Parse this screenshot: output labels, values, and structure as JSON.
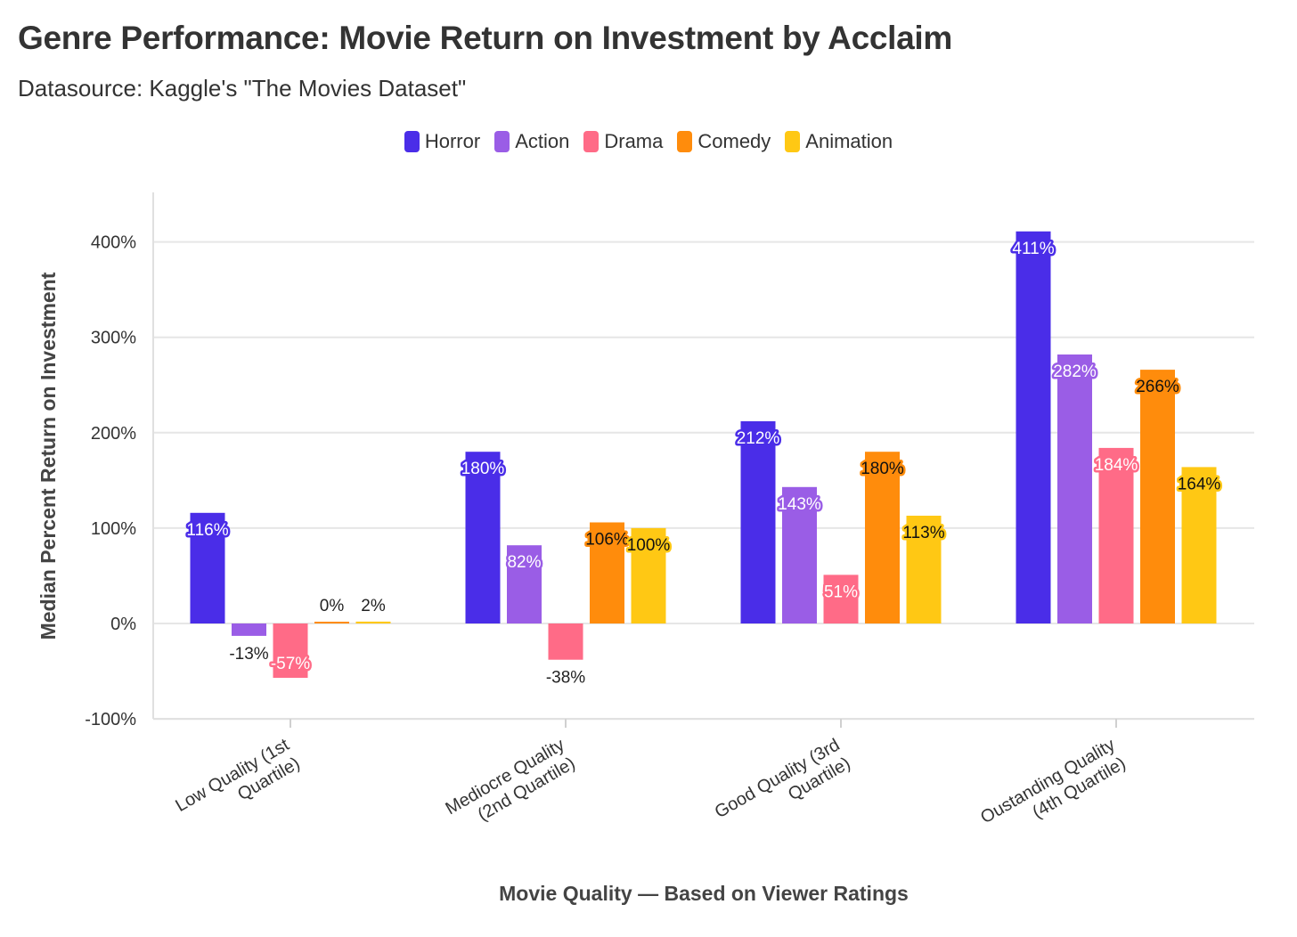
{
  "chart_data": {
    "type": "bar",
    "title": "Genre Performance: Movie Return on Investment by Acclaim",
    "subtitle": "Datasource: Kaggle's \"The Movies Dataset\"",
    "xlabel": "Movie Quality — Based on Viewer Ratings",
    "ylabel": "Median Percent Return on Investment",
    "ylim": [
      -100,
      450
    ],
    "yticks": [
      -100,
      0,
      100,
      200,
      300,
      400
    ],
    "ytick_labels": [
      "-100%",
      "0%",
      "100%",
      "200%",
      "300%",
      "400%"
    ],
    "grid": true,
    "legend_position": "top-center",
    "categories": [
      [
        "Low Quality (1st",
        "Quartile)"
      ],
      [
        "Mediocre Quality",
        "(2nd Quartile)"
      ],
      [
        "Good Quality (3rd",
        "Quartile)"
      ],
      [
        "Oustanding Quality",
        "(4th Quartile)"
      ]
    ],
    "series": [
      {
        "name": "Horror",
        "color": "#4a2de8",
        "values": [
          116,
          180,
          212,
          411
        ],
        "labels": [
          "116%",
          "180%",
          "212%",
          "411%"
        ]
      },
      {
        "name": "Action",
        "color": "#9a5de6",
        "values": [
          -13,
          82,
          143,
          282
        ],
        "labels": [
          "-13%",
          "82%",
          "143%",
          "282%"
        ]
      },
      {
        "name": "Drama",
        "color": "#ff6b87",
        "values": [
          -57,
          -38,
          51,
          184
        ],
        "labels": [
          "-57%",
          "-38%",
          "51%",
          "184%"
        ]
      },
      {
        "name": "Comedy",
        "color": "#ff8c0c",
        "values": [
          0,
          106,
          180,
          266
        ],
        "labels": [
          "0%",
          "106%",
          "180%",
          "266%"
        ]
      },
      {
        "name": "Animation",
        "color": "#ffc814",
        "values": [
          2,
          100,
          113,
          164
        ],
        "labels": [
          "2%",
          "100%",
          "113%",
          "164%"
        ]
      }
    ]
  }
}
